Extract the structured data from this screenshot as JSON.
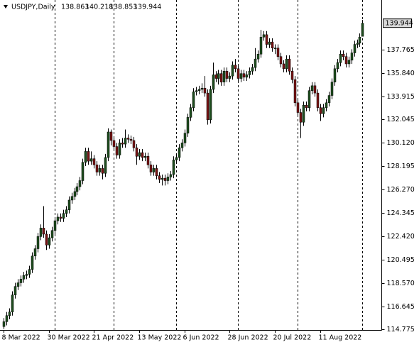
{
  "chart_data": {
    "type": "candlestick",
    "title": "USDJPY,Daily",
    "categories": [
      "8 Mar 2022",
      null,
      null,
      null,
      null,
      null,
      null,
      null,
      null,
      null,
      null,
      null,
      null,
      null,
      null,
      null,
      "30 Mar 2022",
      null,
      null,
      null,
      null,
      null,
      null,
      null,
      null,
      null,
      null,
      null,
      null,
      null,
      null,
      null,
      "21 Apr 2022",
      null,
      null,
      null,
      null,
      null,
      null,
      null,
      null,
      null,
      null,
      null,
      null,
      null,
      null,
      null,
      "13 May 2022",
      null,
      null,
      null,
      null,
      null,
      null,
      null,
      null,
      null,
      null,
      null,
      null,
      null,
      null,
      null,
      "6 Jun 2022",
      null,
      null,
      null,
      null,
      null,
      null,
      null,
      null,
      null,
      null,
      null,
      null,
      null,
      null,
      null,
      "28 Jun 2022",
      null,
      null,
      null,
      null,
      null,
      null,
      null,
      null,
      null,
      null,
      null,
      null,
      null,
      null,
      null,
      "20 Jul 2022",
      null,
      null,
      null,
      null,
      null,
      null,
      null,
      null,
      null,
      null,
      null,
      null,
      null,
      null,
      null,
      "11 Aug 2022",
      null,
      null,
      null,
      null,
      null,
      null,
      null,
      null,
      null,
      null,
      null,
      null,
      null,
      null,
      null
    ],
    "open": [
      115.0,
      115.4,
      115.9,
      116.2,
      117.6,
      118.3,
      118.6,
      118.9,
      119.2,
      119.3,
      119.7,
      120.8,
      121.4,
      122.4,
      123.1,
      122.6,
      121.7,
      122.3,
      122.9,
      123.7,
      124.0,
      123.9,
      124.3,
      124.6,
      125.4,
      125.7,
      126.1,
      126.5,
      127.0,
      128.5,
      129.4,
      128.6,
      128.8,
      128.3,
      127.7,
      128.0,
      127.6,
      128.9,
      131.0,
      130.3,
      129.8,
      129.1,
      130.1,
      130.0,
      130.5,
      130.4,
      130.3,
      129.7,
      129.0,
      129.3,
      128.9,
      129.0,
      128.3,
      127.7,
      128.0,
      127.4,
      127.1,
      127.2,
      127.0,
      127.3,
      127.5,
      128.7,
      128.9,
      129.7,
      130.1,
      130.9,
      132.2,
      133.0,
      134.3,
      134.4,
      134.5,
      134.6,
      134.2,
      132.0,
      134.5,
      135.7,
      135.4,
      135.8,
      135.1,
      136.0,
      135.4,
      135.6,
      136.5,
      136.2,
      135.4,
      135.8,
      135.5,
      135.7,
      136.0,
      136.3,
      137.0,
      137.4,
      138.8,
      139.0,
      138.2,
      138.4,
      137.9,
      137.9,
      137.2,
      136.6,
      136.2,
      137.0,
      136.0,
      135.3,
      133.4,
      132.6,
      131.8,
      133.2,
      133.0,
      134.4,
      134.8,
      134.2,
      133.0,
      132.5,
      133.0,
      133.4,
      134.0,
      135.1,
      136.2,
      136.7,
      137.4,
      137.2,
      136.6,
      136.9,
      137.5,
      138.2,
      138.3,
      138.863
    ],
    "high": [
      115.7,
      116.2,
      116.5,
      117.9,
      118.6,
      118.9,
      119.2,
      119.5,
      119.6,
      120.0,
      121.1,
      121.7,
      122.7,
      123.4,
      124.9,
      122.9,
      122.6,
      123.2,
      124.0,
      124.3,
      124.3,
      124.6,
      124.9,
      125.7,
      126.0,
      126.4,
      126.8,
      127.3,
      128.8,
      129.7,
      129.7,
      129.4,
      129.1,
      128.6,
      128.3,
      128.3,
      129.2,
      131.3,
      131.2,
      130.6,
      130.1,
      130.4,
      130.5,
      131.2,
      130.8,
      130.7,
      130.6,
      130.0,
      129.6,
      129.6,
      129.3,
      129.3,
      128.6,
      128.3,
      128.3,
      127.7,
      127.5,
      127.5,
      127.6,
      127.8,
      129.0,
      129.2,
      130.0,
      130.4,
      131.2,
      132.5,
      133.3,
      134.6,
      134.7,
      134.8,
      135.0,
      135.6,
      134.5,
      134.8,
      136.7,
      136.0,
      136.1,
      136.1,
      136.3,
      136.3,
      135.9,
      136.8,
      137.0,
      136.5,
      136.1,
      136.1,
      136.0,
      136.3,
      136.6,
      137.9,
      137.7,
      139.4,
      139.3,
      139.3,
      138.7,
      138.7,
      138.2,
      138.2,
      137.5,
      136.9,
      137.3,
      137.3,
      136.3,
      135.6,
      133.7,
      132.9,
      133.5,
      133.5,
      134.7,
      135.1,
      135.1,
      134.5,
      133.3,
      133.3,
      133.7,
      134.3,
      135.4,
      136.5,
      137.0,
      137.7,
      137.7,
      137.5,
      137.2,
      137.8,
      138.5,
      138.6,
      139.1,
      140.218
    ],
    "low": [
      114.8,
      115.1,
      115.6,
      115.9,
      117.3,
      118.0,
      118.3,
      118.6,
      118.9,
      119.0,
      119.4,
      120.5,
      121.1,
      122.1,
      122.3,
      121.3,
      121.4,
      122.0,
      122.6,
      123.4,
      123.6,
      123.6,
      124.0,
      124.3,
      125.1,
      125.4,
      125.8,
      126.2,
      126.7,
      128.2,
      128.3,
      128.3,
      128.0,
      127.4,
      127.4,
      127.1,
      127.3,
      128.6,
      129.9,
      129.5,
      128.8,
      128.8,
      129.7,
      129.7,
      130.1,
      130.0,
      129.4,
      128.3,
      128.7,
      128.6,
      128.6,
      128.0,
      127.4,
      127.4,
      127.1,
      126.8,
      126.6,
      126.6,
      126.7,
      127.0,
      127.2,
      128.4,
      128.6,
      129.4,
      129.8,
      130.6,
      131.9,
      132.7,
      134.0,
      134.1,
      134.2,
      133.9,
      131.6,
      131.7,
      134.2,
      135.1,
      134.9,
      134.8,
      134.8,
      135.1,
      135.1,
      135.3,
      135.9,
      135.1,
      135.1,
      135.2,
      135.2,
      135.4,
      135.7,
      136.0,
      136.7,
      137.1,
      138.5,
      137.9,
      137.9,
      137.6,
      137.4,
      136.9,
      136.3,
      135.9,
      135.9,
      135.7,
      135.0,
      133.1,
      132.3,
      130.5,
      131.5,
      132.7,
      132.7,
      134.1,
      133.9,
      132.7,
      131.9,
      132.2,
      132.7,
      133.1,
      133.7,
      134.8,
      135.9,
      136.4,
      136.9,
      136.3,
      136.3,
      136.6,
      137.2,
      137.9,
      138.0,
      138.853
    ],
    "close": [
      115.4,
      115.9,
      116.2,
      117.6,
      118.3,
      118.6,
      118.9,
      119.2,
      119.3,
      119.7,
      120.8,
      121.4,
      122.4,
      123.1,
      122.6,
      121.7,
      122.3,
      122.9,
      123.7,
      124.0,
      123.9,
      124.3,
      124.6,
      125.4,
      125.7,
      126.1,
      126.5,
      127.0,
      128.5,
      129.4,
      128.6,
      128.8,
      128.3,
      127.7,
      128.0,
      127.6,
      128.9,
      131.0,
      130.3,
      129.8,
      129.1,
      130.1,
      130.0,
      130.5,
      130.4,
      130.3,
      129.7,
      129.0,
      129.3,
      128.9,
      129.0,
      128.3,
      127.7,
      128.0,
      127.4,
      127.1,
      127.2,
      127.0,
      127.3,
      127.5,
      128.7,
      128.9,
      129.7,
      130.1,
      130.9,
      132.2,
      133.0,
      134.3,
      134.4,
      134.5,
      134.6,
      134.2,
      132.0,
      134.5,
      135.7,
      135.4,
      135.8,
      135.1,
      136.0,
      135.4,
      135.6,
      136.5,
      136.2,
      135.4,
      135.8,
      135.5,
      135.7,
      136.0,
      136.3,
      137.0,
      137.4,
      138.8,
      139.0,
      138.2,
      138.4,
      137.9,
      137.9,
      137.2,
      136.6,
      136.2,
      137.0,
      136.0,
      135.3,
      133.4,
      132.6,
      131.8,
      133.2,
      133.0,
      134.4,
      134.8,
      134.2,
      133.0,
      132.5,
      133.0,
      133.4,
      134.0,
      135.1,
      136.2,
      136.7,
      137.4,
      137.2,
      136.6,
      136.9,
      137.5,
      138.2,
      138.3,
      138.8,
      139.944
    ],
    "up_color": "#1f4f1f",
    "down_color": "#7a1414",
    "ylim": [
      114.72,
      141.85
    ],
    "yticks": [
      137.765,
      {
        "value": 135.84,
        "label": "135.840"
      },
      133.915,
      132.045,
      {
        "value": 130.12,
        "label": "130.120"
      },
      128.195,
      {
        "value": 126.27,
        "label": "126.270"
      },
      124.345,
      {
        "value": 122.42,
        "label": "122.420"
      },
      120.495,
      {
        "value": 118.57,
        "label": "118.570"
      },
      116.645,
      114.775
    ],
    "period_separators": [
      18,
      39,
      61,
      83,
      104,
      127
    ]
  }
}
